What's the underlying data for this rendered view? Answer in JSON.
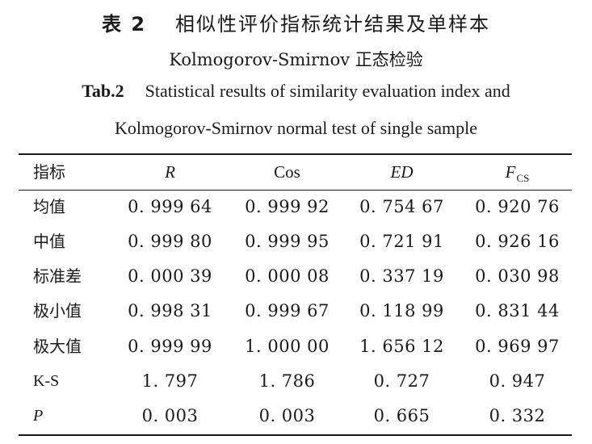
{
  "caption": {
    "cn_label": "表 2",
    "cn_title_line1": "相似性评价指标统计结果及单样本",
    "cn_title_line2": "Kolmogorov-Smirnov 正态检验",
    "en_label": "Tab.2",
    "en_title_line1": "Statistical results of similarity evaluation index and",
    "en_title_line2": "Kolmogorov-Smirnov normal test of single sample"
  },
  "table": {
    "headers": {
      "index": "指标",
      "r": "R",
      "cos": "Cos",
      "ed": "ED",
      "fcs_main": "F",
      "fcs_sub": "CS"
    },
    "rows": [
      {
        "label": "均值",
        "r": "0. 999 64",
        "cos": "0. 999 92",
        "ed": "0. 754 67",
        "fcs": "0. 920 76"
      },
      {
        "label": "中值",
        "r": "0. 999 80",
        "cos": "0. 999 95",
        "ed": "0. 721 91",
        "fcs": "0. 926 16"
      },
      {
        "label": "标准差",
        "r": "0. 000 39",
        "cos": "0. 000 08",
        "ed": "0. 337 19",
        "fcs": "0. 030 98"
      },
      {
        "label": "极小值",
        "r": "0. 998 31",
        "cos": "0. 999 67",
        "ed": "0. 118 99",
        "fcs": "0. 831 44"
      },
      {
        "label": "极大值",
        "r": "0. 999 99",
        "cos": "1. 000 00",
        "ed": "1. 656 12",
        "fcs": "0. 969 97"
      },
      {
        "label": "K-S",
        "r": "1. 797",
        "cos": "1. 786",
        "ed": "0. 727",
        "fcs": "0. 947"
      },
      {
        "label": "P",
        "r": "0. 003",
        "cos": "0. 003",
        "ed": "0. 665",
        "fcs": "0. 332"
      }
    ]
  }
}
